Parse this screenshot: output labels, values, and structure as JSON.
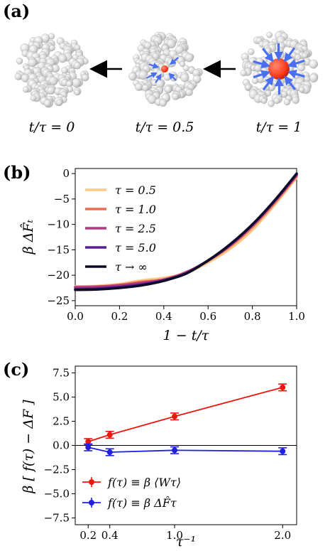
{
  "panel_a": {
    "label": "(a)",
    "captions": [
      "t/τ = 0",
      "t/τ = 0.5",
      "t/τ = 1"
    ],
    "arrow_icon": "arrow-left-icon",
    "particle_color": "#e8e8e8",
    "solute_color": "#ff3b1a",
    "vector_color": "#4a6ef0"
  },
  "chart_data": [
    {
      "id": "b",
      "panel_label": "(b)",
      "type": "line",
      "xlabel": "1 − t/τ",
      "ylabel": "β ΔF̂ₜ",
      "xlim": [
        0,
        1
      ],
      "ylim": [
        -26,
        1
      ],
      "xticks": [
        0.0,
        0.2,
        0.4,
        0.6,
        0.8,
        1.0
      ],
      "xtick_labels": [
        "0.0",
        "0.2",
        "0.4",
        "0.6",
        "0.8",
        "1.0"
      ],
      "yticks": [
        0,
        -5,
        -10,
        -15,
        -20,
        -25
      ],
      "ytick_labels": [
        "0",
        "−5",
        "−10",
        "−15",
        "−20",
        "−25"
      ],
      "legend_position": "upper-left",
      "series": [
        {
          "name": "τ = 0.5",
          "color": "#fdc887",
          "x": [
            0,
            0.1,
            0.2,
            0.3,
            0.4,
            0.5,
            0.6,
            0.7,
            0.8,
            0.9,
            1.0
          ],
          "y": [
            -22.2,
            -22.1,
            -21.7,
            -21.0,
            -20.5,
            -19.6,
            -17.5,
            -14.8,
            -11.1,
            -6.2,
            -0.8
          ]
        },
        {
          "name": "τ = 1.0",
          "color": "#ec6b55",
          "x": [
            0,
            0.1,
            0.2,
            0.3,
            0.4,
            0.5,
            0.6,
            0.7,
            0.8,
            0.9,
            1.0
          ],
          "y": [
            -22.3,
            -22.2,
            -21.9,
            -21.3,
            -20.8,
            -19.4,
            -17.2,
            -14.3,
            -10.5,
            -5.8,
            -0.5
          ]
        },
        {
          "name": "τ = 2.5",
          "color": "#b03a7f",
          "x": [
            0,
            0.1,
            0.2,
            0.3,
            0.4,
            0.5,
            0.6,
            0.7,
            0.8,
            0.9,
            1.0
          ],
          "y": [
            -22.4,
            -22.3,
            -22.0,
            -21.5,
            -20.9,
            -19.5,
            -17.1,
            -14.1,
            -10.2,
            -5.5,
            -0.3
          ]
        },
        {
          "name": "τ = 5.0",
          "color": "#5a1e91",
          "x": [
            0,
            0.1,
            0.2,
            0.3,
            0.4,
            0.5,
            0.6,
            0.7,
            0.8,
            0.9,
            1.0
          ],
          "y": [
            -22.7,
            -22.6,
            -22.3,
            -21.8,
            -21.0,
            -19.6,
            -17.1,
            -14.0,
            -10.1,
            -5.4,
            -0.1
          ]
        },
        {
          "name": "τ → ∞",
          "color": "#0d0b2a",
          "x": [
            0,
            0.1,
            0.2,
            0.3,
            0.4,
            0.5,
            0.6,
            0.7,
            0.8,
            0.9,
            1.0
          ],
          "y": [
            -22.9,
            -22.8,
            -22.5,
            -22.0,
            -21.1,
            -19.7,
            -17.1,
            -13.9,
            -10.0,
            -5.3,
            0.0
          ]
        }
      ]
    },
    {
      "id": "c",
      "panel_label": "(c)",
      "type": "line",
      "xlabel": "τ⁻¹",
      "ylabel": "β [ f(τ) − ΔF ]",
      "xlim": [
        0.08,
        2.13
      ],
      "ylim": [
        -8.2,
        8.2
      ],
      "xticks": [
        0.2,
        0.4,
        1.0,
        2.0
      ],
      "xtick_labels": [
        "0.2",
        "0.4",
        "1.0",
        "2.0"
      ],
      "yticks": [
        7.5,
        5.0,
        2.5,
        0.0,
        -2.5,
        -5.0,
        -7.5
      ],
      "ytick_labels": [
        "7.5",
        "5.0",
        "2.5",
        "0.0",
        "−2.5",
        "−5.0",
        "−7.5"
      ],
      "hline": 0,
      "legend_position": "lower-left",
      "series": [
        {
          "name": "f(τ) ≡ β ⟨Wτ⟩",
          "color": "#e8180f",
          "x": [
            0.2,
            0.4,
            1.0,
            2.0
          ],
          "y": [
            0.4,
            1.1,
            3.0,
            6.0
          ],
          "err": [
            0.3,
            0.35,
            0.35,
            0.35
          ]
        },
        {
          "name": "f(τ) ≡ β ΔF̂τ",
          "color": "#1f1fe0",
          "x": [
            0.2,
            0.4,
            1.0,
            2.0
          ],
          "y": [
            -0.2,
            -0.7,
            -0.5,
            -0.6
          ],
          "err": [
            0.35,
            0.35,
            0.35,
            0.35
          ]
        }
      ]
    }
  ]
}
